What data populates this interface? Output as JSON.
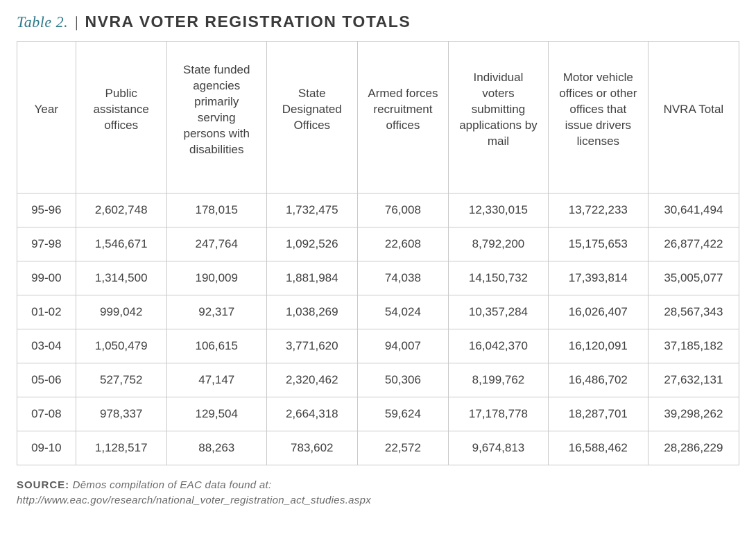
{
  "header": {
    "label": "Table 2.",
    "separator": "|",
    "title": "NVRA VOTER REGISTRATION TOTALS"
  },
  "table": {
    "columns": [
      "Year",
      "Public assistance offices",
      "State funded agencies primarily serving persons with disabilities",
      "State Designated Offices",
      "Armed forces recruitment offices",
      "Individual voters submitting applications by mail",
      "Motor vehicle offices or other offices that issue drivers licenses",
      "NVRA Total"
    ],
    "col_classes": [
      "c-year",
      "c-mid",
      "c-wide",
      "c-mid",
      "c-mid",
      "c-wide",
      "c-wide",
      "c-mid"
    ],
    "rows": [
      [
        "95-96",
        "2,602,748",
        "178,015",
        "1,732,475",
        "76,008",
        "12,330,015",
        "13,722,233",
        "30,641,494"
      ],
      [
        "97-98",
        "1,546,671",
        "247,764",
        "1,092,526",
        "22,608",
        "8,792,200",
        "15,175,653",
        "26,877,422"
      ],
      [
        "99-00",
        "1,314,500",
        "190,009",
        "1,881,984",
        "74,038",
        "14,150,732",
        "17,393,814",
        "35,005,077"
      ],
      [
        "01-02",
        "999,042",
        "92,317",
        "1,038,269",
        "54,024",
        "10,357,284",
        "16,026,407",
        "28,567,343"
      ],
      [
        "03-04",
        "1,050,479",
        "106,615",
        "3,771,620",
        "94,007",
        "16,042,370",
        "16,120,091",
        "37,185,182"
      ],
      [
        "05-06",
        "527,752",
        "47,147",
        "2,320,462",
        "50,306",
        "8,199,762",
        "16,486,702",
        "27,632,131"
      ],
      [
        "07-08",
        "978,337",
        "129,504",
        "2,664,318",
        "59,624",
        "17,178,778",
        "18,287,701",
        "39,298,262"
      ],
      [
        "09-10",
        "1,128,517",
        "88,263",
        "783,602",
        "22,572",
        "9,674,813",
        "16,588,462",
        "28,286,229"
      ]
    ],
    "border_color": "#c9c9c9",
    "header_fontsize": 17,
    "cell_fontsize": 17,
    "text_color": "#3f3f3f"
  },
  "source": {
    "label": "SOURCE:",
    "text": "Dēmos compilation of EAC data found at:",
    "url": "http://www.eac.gov/research/national_voter_registration_act_studies.aspx"
  },
  "colors": {
    "accent": "#2e7a8a",
    "title": "#3a3a3a",
    "background": "#ffffff"
  }
}
